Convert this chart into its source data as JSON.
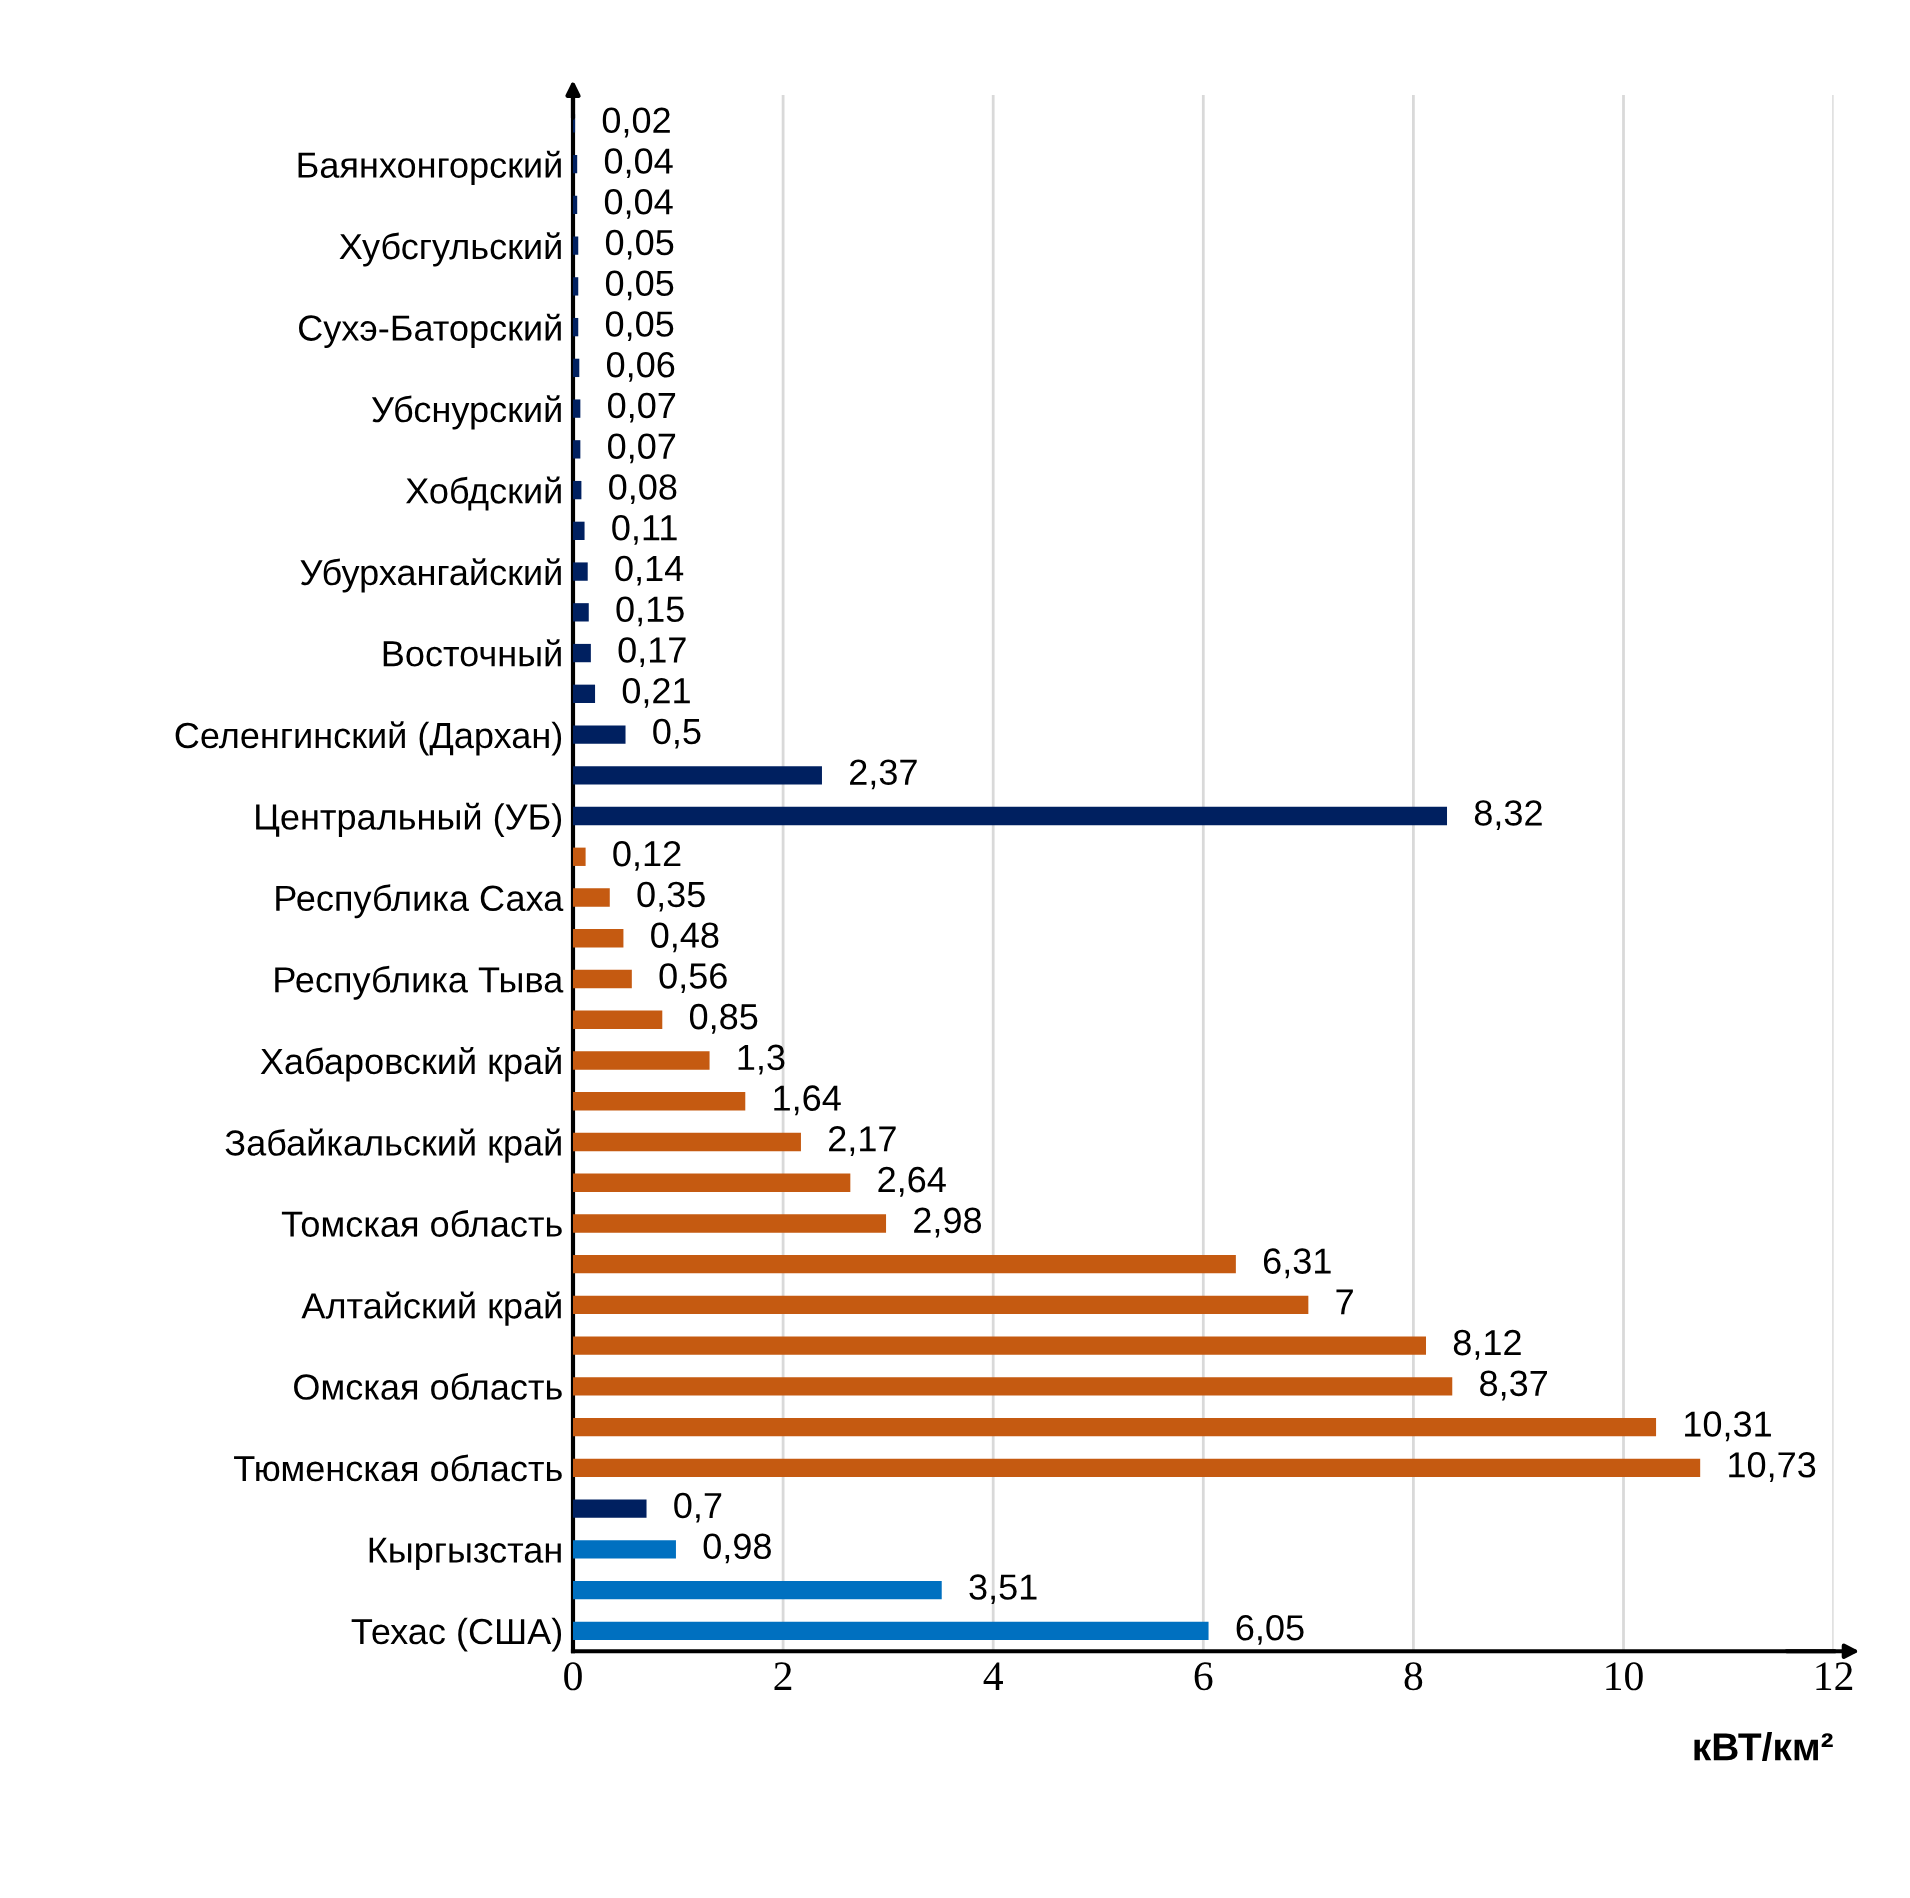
{
  "chart_data": {
    "type": "bar",
    "orientation": "horizontal",
    "xlabel": "кВТ/км²",
    "categories": [
      null,
      "Баянхонгорский",
      null,
      "Хубсгульский",
      null,
      "Сухэ-Баторский",
      null,
      "Убснурский",
      null,
      "Хобдский",
      null,
      "Убурхангайский",
      null,
      "Восточный",
      null,
      "Селенгинский (Дархан)",
      null,
      "Центральный (УБ)",
      null,
      "Республика Саха",
      null,
      "Республика Тыва",
      null,
      "Хабаровский край",
      null,
      "Забайкальский край",
      null,
      "Томская область",
      null,
      "Алтайский край",
      null,
      "Омская область",
      null,
      "Тюменская область",
      null,
      "Кыргызстан",
      null,
      "Техас (США)"
    ],
    "values": [
      0.02,
      0.04,
      0.04,
      0.05,
      0.05,
      0.05,
      0.06,
      0.07,
      0.07,
      0.08,
      0.11,
      0.14,
      0.15,
      0.17,
      0.21,
      0.5,
      2.37,
      8.32,
      0.12,
      0.35,
      0.48,
      0.56,
      0.85,
      1.3,
      1.64,
      2.17,
      2.64,
      2.98,
      6.31,
      7,
      8.12,
      8.37,
      10.31,
      10.73,
      0.7,
      0.98,
      3.51,
      6.05
    ],
    "value_labels": [
      "0,02",
      "0,04",
      "0,04",
      "0,05",
      "0,05",
      "0,05",
      "0,06",
      "0,07",
      "0,07",
      "0,08",
      "0,11",
      "0,14",
      "0,15",
      "0,17",
      "0,21",
      "0,5",
      "2,37",
      "8,32",
      "0,12",
      "0,35",
      "0,48",
      "0,56",
      "0,85",
      "1,3",
      "1,64",
      "2,17",
      "2,64",
      "2,98",
      "6,31",
      "7",
      "8,12",
      "8,37",
      "10,31",
      "10,73",
      "0,7",
      "0,98",
      "3,51",
      "6,05"
    ],
    "colors": [
      "#002060",
      "#002060",
      "#002060",
      "#002060",
      "#002060",
      "#002060",
      "#002060",
      "#002060",
      "#002060",
      "#002060",
      "#002060",
      "#002060",
      "#002060",
      "#002060",
      "#002060",
      "#002060",
      "#002060",
      "#002060",
      "#c55a11",
      "#c55a11",
      "#c55a11",
      "#c55a11",
      "#c55a11",
      "#c55a11",
      "#c55a11",
      "#c55a11",
      "#c55a11",
      "#c55a11",
      "#c55a11",
      "#c55a11",
      "#c55a11",
      "#c55a11",
      "#c55a11",
      "#c55a11",
      "#002060",
      "#0070c0",
      "#0070c0",
      "#0070c0"
    ],
    "xlim": [
      0,
      12
    ],
    "xticks": [
      0,
      2,
      4,
      6,
      8,
      10,
      12
    ],
    "grid": "x",
    "legend": false
  }
}
